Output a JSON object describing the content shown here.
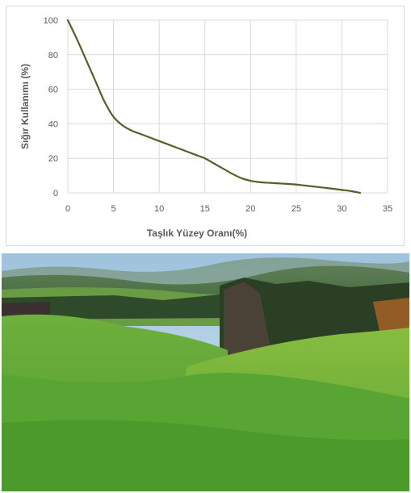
{
  "chart_data": {
    "type": "line",
    "title": "",
    "xlabel": "Taşlık Yüzey Oranı(%)",
    "ylabel": "Sığır Kullanımı (%)",
    "xlim": [
      0,
      35
    ],
    "ylim": [
      0,
      100
    ],
    "xticks": [
      "0",
      "5",
      "10",
      "15",
      "20",
      "25",
      "30",
      "35"
    ],
    "yticks": [
      "0",
      "20",
      "40",
      "60",
      "80",
      "100"
    ],
    "grid": true,
    "legend": "none",
    "series": [
      {
        "x": [
          0,
          1,
          2,
          3,
          4,
          5,
          6,
          7,
          8,
          9,
          10,
          11,
          12,
          13,
          14,
          15,
          16,
          17,
          18,
          19,
          20,
          21,
          22,
          23,
          24,
          25,
          26,
          27,
          28,
          29,
          30,
          31,
          32
        ],
        "values": [
          100,
          89,
          77,
          65,
          53,
          44,
          39,
          36,
          34,
          32,
          30,
          28,
          26,
          24,
          22,
          20,
          17,
          14,
          11,
          8.5,
          7,
          6.2,
          5.8,
          5.5,
          5.2,
          4.8,
          4.2,
          3.6,
          3,
          2.4,
          1.7,
          1,
          0
        ],
        "color": "#4f6228"
      }
    ]
  },
  "photo": {
    "description_icon": "landscape-photo",
    "sky_color": "#b9d4e6",
    "grass_color": "#63a73a"
  }
}
